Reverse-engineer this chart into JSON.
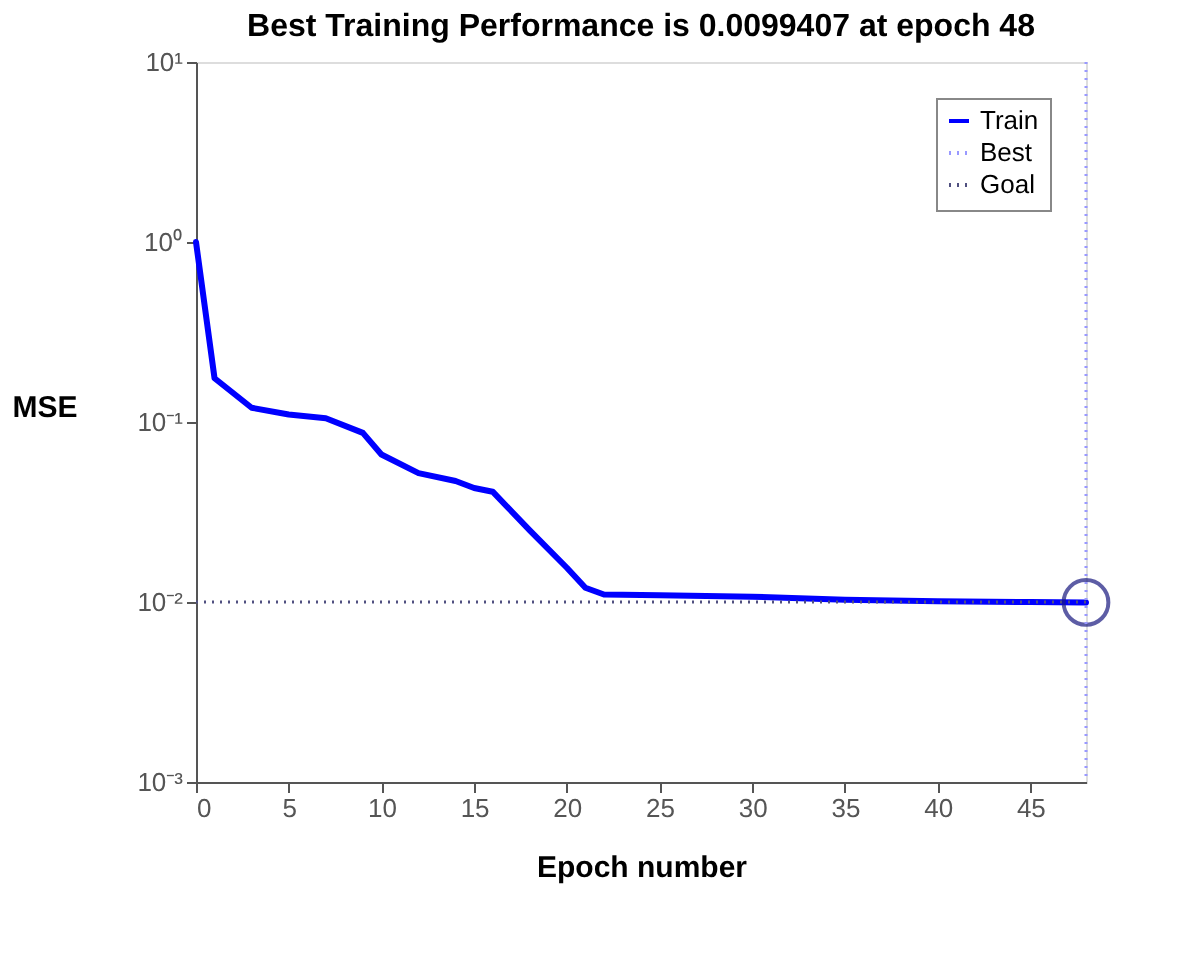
{
  "chart_data": {
    "type": "line",
    "title": "Best Training Performance is 0.0099407 at epoch 48",
    "xlabel": "Epoch number",
    "ylabel": "MSE",
    "log": "y",
    "grid": false,
    "legend": "top right",
    "line_style": "solid",
    "marker": "none",
    "xlim": [
      0,
      48
    ],
    "xticks": [
      0,
      5,
      10,
      15,
      20,
      25,
      30,
      35,
      40,
      45
    ],
    "ylim": [
      0.001,
      10
    ],
    "yticks": [
      {
        "value": 0.001,
        "label": "10⁻³"
      },
      {
        "value": 0.01,
        "label": "10⁻²"
      },
      {
        "value": 0.1,
        "label": "10⁻¹"
      },
      {
        "value": 1,
        "label": "10⁰"
      },
      {
        "value": 10,
        "label": "10¹"
      }
    ],
    "series": [
      {
        "name": "Train",
        "color": "#0000ff",
        "x": [
          0,
          1,
          3,
          5,
          7,
          9,
          10,
          12,
          14,
          15,
          16,
          18,
          20,
          21,
          22,
          25,
          30,
          35,
          40,
          45,
          48
        ],
        "values": [
          1,
          0.175,
          0.12,
          0.11,
          0.105,
          0.087,
          0.066,
          0.052,
          0.047,
          0.043,
          0.041,
          0.025,
          0.0155,
          0.012,
          0.011,
          0.0109,
          0.0107,
          0.0103,
          0.0101,
          0.01,
          0.0099407
        ]
      },
      {
        "type": "scatter",
        "marker": "circle",
        "color": "#1a1a80",
        "x": [
          48
        ],
        "values": [
          0.0099407
        ]
      }
    ],
    "ref_lines": [
      {
        "axis": "x",
        "value": 48,
        "label": "Best",
        "color": "#9999ff",
        "line_style": "dotted"
      },
      {
        "axis": "y",
        "value": 0.01,
        "label": "Goal",
        "color": "#505080",
        "line_style": "dotted"
      }
    ]
  }
}
